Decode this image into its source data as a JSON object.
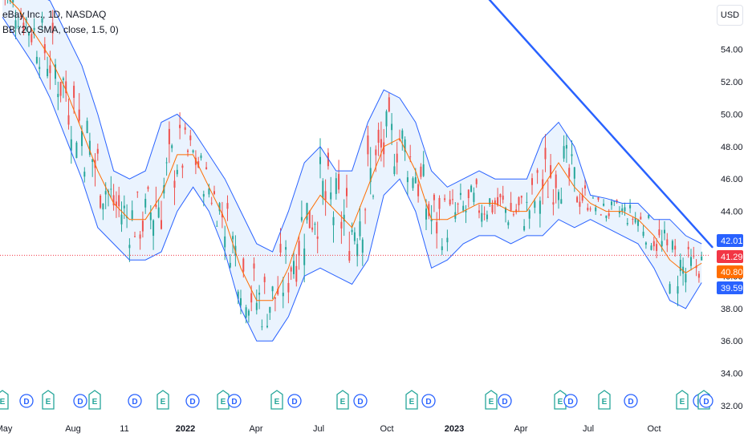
{
  "legend": {
    "symbol": "eBay Inc., 1D, NASDAQ",
    "indicator": "BB (20, SMA, close, 1.5, 0)"
  },
  "currency": "USD",
  "colors": {
    "up": "#26a69a",
    "down": "#ef5350",
    "basis": "#ff6d00",
    "band": "#2962ff",
    "band_fill": "#e3effd",
    "trendline": "#2962ff",
    "last_price": "#f23645"
  },
  "chart_data": {
    "type": "candlestick",
    "y_ticks": [
      "54.00",
      "52.00",
      "50.00",
      "48.00",
      "46.00",
      "44.00",
      "42.00",
      "40.00",
      "38.00",
      "36.00",
      "34.00",
      "32.00"
    ],
    "ylim": [
      32,
      58
    ],
    "x_ticks": [
      {
        "label": "May",
        "bold": false
      },
      {
        "label": "Aug",
        "bold": false
      },
      {
        "label": "11",
        "bold": false
      },
      {
        "label": "2022",
        "bold": true
      },
      {
        "label": "Apr",
        "bold": false
      },
      {
        "label": "Jul",
        "bold": false
      },
      {
        "label": "Oct",
        "bold": false
      },
      {
        "label": "2023",
        "bold": true
      },
      {
        "label": "Apr",
        "bold": false
      },
      {
        "label": "Jul",
        "bold": false
      },
      {
        "label": "Oct",
        "bold": false
      }
    ],
    "price_labels": [
      {
        "value": "42.01",
        "price": 42.01,
        "role": "upper band"
      },
      {
        "value": "41.29",
        "price": 41.29,
        "role": "last price"
      },
      {
        "value": "40.80",
        "price": 40.8,
        "role": "basis"
      },
      {
        "value": "39.59",
        "price": 39.59,
        "role": "lower band"
      }
    ],
    "basis": [
      [
        0,
        57.5
      ],
      [
        6,
        56.5
      ],
      [
        12,
        55.0
      ],
      [
        18,
        53.5
      ],
      [
        24,
        51.5
      ],
      [
        30,
        49.0
      ],
      [
        36,
        46.5
      ],
      [
        42,
        44.5
      ],
      [
        48,
        43.5
      ],
      [
        54,
        43.5
      ],
      [
        60,
        45.0
      ],
      [
        66,
        47.5
      ],
      [
        72,
        47.5
      ],
      [
        78,
        45.5
      ],
      [
        84,
        43.5
      ],
      [
        90,
        40.5
      ],
      [
        96,
        38.5
      ],
      [
        102,
        38.5
      ],
      [
        108,
        40.5
      ],
      [
        114,
        43.5
      ],
      [
        120,
        45.0
      ],
      [
        126,
        44.0
      ],
      [
        132,
        43.0
      ],
      [
        138,
        45.5
      ],
      [
        144,
        48.0
      ],
      [
        150,
        48.5
      ],
      [
        156,
        46.5
      ],
      [
        162,
        43.5
      ],
      [
        168,
        43.5
      ],
      [
        174,
        44.0
      ],
      [
        180,
        44.5
      ],
      [
        186,
        44.5
      ],
      [
        192,
        44.0
      ],
      [
        198,
        44.0
      ],
      [
        204,
        45.5
      ],
      [
        210,
        47.0
      ],
      [
        216,
        45.5
      ],
      [
        222,
        44.5
      ],
      [
        228,
        44.0
      ],
      [
        234,
        44.0
      ],
      [
        240,
        43.5
      ],
      [
        246,
        42.5
      ],
      [
        252,
        41.0
      ],
      [
        258,
        40.2
      ],
      [
        264,
        40.8
      ]
    ],
    "upper_band": [
      [
        0,
        59.0
      ],
      [
        6,
        58.5
      ],
      [
        12,
        57.5
      ],
      [
        18,
        57.0
      ],
      [
        24,
        55.0
      ],
      [
        30,
        53.0
      ],
      [
        36,
        50.0
      ],
      [
        42,
        46.5
      ],
      [
        48,
        46.0
      ],
      [
        54,
        46.5
      ],
      [
        60,
        49.5
      ],
      [
        66,
        50.0
      ],
      [
        72,
        49.0
      ],
      [
        78,
        47.5
      ],
      [
        84,
        46.0
      ],
      [
        90,
        44.0
      ],
      [
        96,
        42.0
      ],
      [
        102,
        41.5
      ],
      [
        108,
        44.0
      ],
      [
        114,
        47.0
      ],
      [
        120,
        48.0
      ],
      [
        126,
        46.5
      ],
      [
        132,
        46.5
      ],
      [
        138,
        49.5
      ],
      [
        144,
        51.5
      ],
      [
        150,
        51.0
      ],
      [
        156,
        49.5
      ],
      [
        162,
        46.5
      ],
      [
        168,
        45.5
      ],
      [
        174,
        46.0
      ],
      [
        180,
        46.5
      ],
      [
        186,
        46.0
      ],
      [
        192,
        46.0
      ],
      [
        198,
        46.0
      ],
      [
        204,
        48.5
      ],
      [
        210,
        49.5
      ],
      [
        216,
        48.0
      ],
      [
        222,
        45.0
      ],
      [
        228,
        44.8
      ],
      [
        234,
        44.5
      ],
      [
        240,
        44.5
      ],
      [
        246,
        43.5
      ],
      [
        252,
        43.5
      ],
      [
        258,
        42.5
      ],
      [
        264,
        42.0
      ]
    ],
    "lower_band": [
      [
        0,
        56.0
      ],
      [
        6,
        54.5
      ],
      [
        12,
        53.0
      ],
      [
        18,
        51.0
      ],
      [
        24,
        48.5
      ],
      [
        30,
        46.0
      ],
      [
        36,
        43.0
      ],
      [
        42,
        42.0
      ],
      [
        48,
        41.0
      ],
      [
        54,
        41.0
      ],
      [
        60,
        41.5
      ],
      [
        66,
        44.0
      ],
      [
        72,
        45.5
      ],
      [
        78,
        44.0
      ],
      [
        84,
        41.5
      ],
      [
        90,
        38.0
      ],
      [
        96,
        36.0
      ],
      [
        102,
        36.0
      ],
      [
        108,
        37.5
      ],
      [
        114,
        40.0
      ],
      [
        120,
        40.5
      ],
      [
        126,
        40.0
      ],
      [
        132,
        39.5
      ],
      [
        138,
        41.0
      ],
      [
        144,
        45.0
      ],
      [
        150,
        46.0
      ],
      [
        156,
        44.0
      ],
      [
        162,
        40.5
      ],
      [
        168,
        41.0
      ],
      [
        174,
        42.0
      ],
      [
        180,
        42.5
      ],
      [
        186,
        42.5
      ],
      [
        192,
        42.0
      ],
      [
        198,
        42.5
      ],
      [
        204,
        42.5
      ],
      [
        210,
        43.5
      ],
      [
        216,
        43.0
      ],
      [
        222,
        43.5
      ],
      [
        228,
        43.0
      ],
      [
        234,
        42.5
      ],
      [
        240,
        42.0
      ],
      [
        246,
        40.5
      ],
      [
        252,
        38.5
      ],
      [
        258,
        38.0
      ],
      [
        264,
        39.6
      ]
    ],
    "trendline": [
      [
        176,
        58.5
      ],
      [
        268,
        41.8
      ]
    ],
    "event_markers": [
      "E",
      "D",
      "E",
      "D",
      "E",
      "D",
      "E",
      "D",
      "E",
      "D",
      "E",
      "D",
      "E",
      "D",
      "E",
      "D",
      "E",
      "D",
      "E",
      "D",
      "E",
      "D",
      "E",
      "D",
      "E",
      "D"
    ]
  }
}
